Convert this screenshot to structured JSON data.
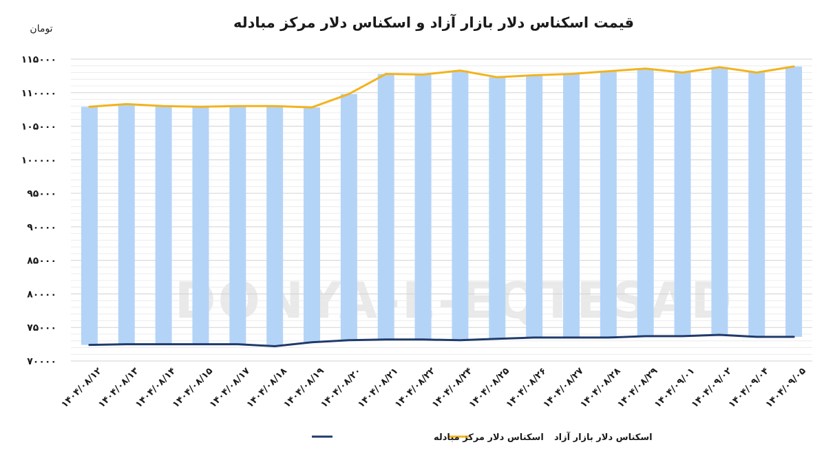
{
  "chart_data": {
    "type": "bar",
    "title": "قیمت اسکناس دلار بازار آزاد و اسکناس دلار مرکز مبادله",
    "unit_label": "تومان",
    "watermark": "DONYA-E-EQTESAD",
    "ylim": [
      70000,
      115000
    ],
    "yticks": [
      {
        "value": 70000,
        "label": "۷۰۰۰۰"
      },
      {
        "value": 75000,
        "label": "۷۵۰۰۰"
      },
      {
        "value": 80000,
        "label": "۸۰۰۰۰"
      },
      {
        "value": 85000,
        "label": "۸۵۰۰۰"
      },
      {
        "value": 90000,
        "label": "۹۰۰۰۰"
      },
      {
        "value": 95000,
        "label": "۹۵۰۰۰"
      },
      {
        "value": 100000,
        "label": "۱۰۰۰۰۰"
      },
      {
        "value": 105000,
        "label": "۱۰۵۰۰۰"
      },
      {
        "value": 110000,
        "label": "۱۱۰۰۰۰"
      },
      {
        "value": 115000,
        "label": "۱۱۵۰۰۰"
      }
    ],
    "categories": [
      "۱۴۰۴/۰۸/۱۲",
      "۱۴۰۴/۰۸/۱۳",
      "۱۴۰۴/۰۸/۱۴",
      "۱۴۰۴/۰۸/۱۵",
      "۱۴۰۴/۰۸/۱۷",
      "۱۴۰۴/۰۸/۱۸",
      "۱۴۰۴/۰۸/۱۹",
      "۱۴۰۴/۰۸/۲۰",
      "۱۴۰۴/۰۸/۲۱",
      "۱۴۰۴/۰۸/۲۲",
      "۱۴۰۴/۰۸/۲۴",
      "۱۴۰۴/۰۸/۲۵",
      "۱۴۰۴/۰۸/۲۶",
      "۱۴۰۴/۰۸/۲۷",
      "۱۴۰۴/۰۸/۲۸",
      "۱۴۰۴/۰۸/۲۹",
      "۱۴۰۴/۰۹/۰۱",
      "۱۴۰۴/۰۹/۰۲",
      "۱۴۰۴/۰۹/۰۴",
      "۱۴۰۴/۰۹/۰۵"
    ],
    "series": [
      {
        "name": "اسکناس دلار بازار آزاد",
        "color": "#f2b31c",
        "values": [
          107900,
          108300,
          108000,
          107900,
          108000,
          108000,
          107800,
          109800,
          112800,
          112700,
          113300,
          112300,
          112600,
          112800,
          113200,
          113600,
          113000,
          113800,
          113000,
          113900
        ]
      },
      {
        "name": "اسکناس دلار مرکز مبادله",
        "color": "#1f3a6b",
        "values": [
          72400,
          72500,
          72500,
          72500,
          72500,
          72200,
          72800,
          73100,
          73200,
          73200,
          73100,
          73300,
          73500,
          73500,
          73500,
          73700,
          73700,
          73900,
          73600,
          73600
        ]
      }
    ],
    "bar_color": "#b4d4f7",
    "grid": true,
    "legend": "bottom-center"
  }
}
